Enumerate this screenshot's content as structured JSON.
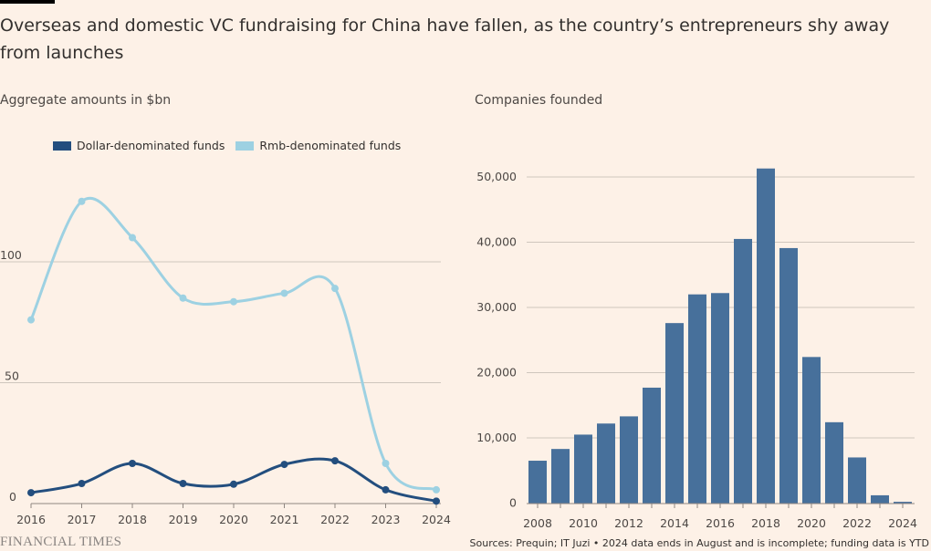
{
  "title": "Overseas and domestic VC fundraising for China have fallen, as the country’s entrepreneurs shy away from launches",
  "footer": {
    "logo": "FINANCIAL TIMES",
    "source": "Sources: Prequin; IT Juzi • 2024 data ends in August and is incomplete; funding data is YTD"
  },
  "chart_data": [
    {
      "type": "line",
      "subtitle": "Aggregate amounts in $bn",
      "x": [
        2016,
        2017,
        2018,
        2019,
        2020,
        2021,
        2022,
        2023,
        2024
      ],
      "x_tick_labels": [
        "2016",
        "2017",
        "2018",
        "2019",
        "2020",
        "2021",
        "2022",
        "2023",
        "2024"
      ],
      "y_ticks": [
        0,
        50,
        100
      ],
      "y_tick_labels": [
        "0",
        "50",
        "100"
      ],
      "ylim": [
        0,
        130
      ],
      "grid": true,
      "legend_position": "top",
      "series": [
        {
          "name": "Dollar-denominated funds",
          "color": "#234e7e",
          "values": [
            4.5,
            8.3,
            16.6,
            8.3,
            8.0,
            16.2,
            17.7,
            5.7,
            1.0
          ]
        },
        {
          "name": "Rmb-denominated funds",
          "color": "#9dd1e2",
          "values": [
            76,
            125,
            110,
            85,
            83.5,
            87,
            89,
            16.6,
            5.7
          ]
        }
      ]
    },
    {
      "type": "bar",
      "subtitle": "Companies founded",
      "categories": [
        2008,
        2009,
        2010,
        2011,
        2012,
        2013,
        2014,
        2015,
        2016,
        2017,
        2018,
        2019,
        2020,
        2021,
        2022,
        2023,
        2024
      ],
      "x_tick_labels": [
        "2008",
        "2010",
        "2012",
        "2014",
        "2016",
        "2018",
        "2020",
        "2022",
        "2024"
      ],
      "values": [
        6500,
        8300,
        10500,
        12200,
        13300,
        17700,
        27600,
        32000,
        32200,
        40500,
        51300,
        39100,
        22400,
        12400,
        7000,
        1200,
        200
      ],
      "color": "#47709b",
      "y_ticks": [
        0,
        10000,
        20000,
        30000,
        40000,
        50000
      ],
      "y_tick_labels": [
        "0",
        "10,000",
        "20,000",
        "30,000",
        "40,000",
        "50,000"
      ],
      "ylim": [
        0,
        52000
      ],
      "grid": true
    }
  ]
}
